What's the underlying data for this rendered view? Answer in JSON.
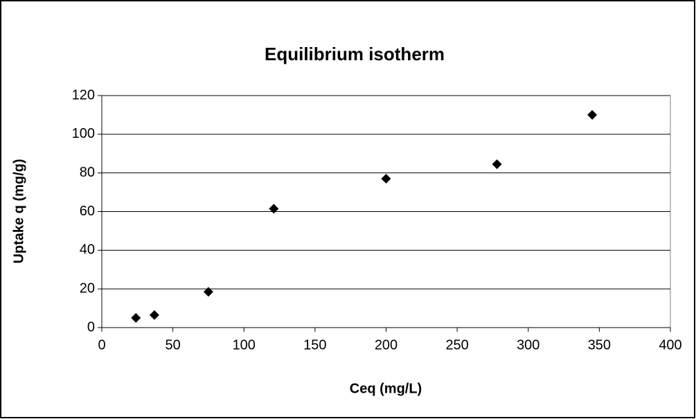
{
  "chart_data": {
    "type": "scatter",
    "title": "Equilibrium isotherm",
    "x_label": "Ceq (mg/L)",
    "y_label": "Uptake q (mg/g)",
    "series": [
      {
        "color": "#000000",
        "x": [
          24,
          37,
          75,
          121,
          200,
          278,
          345
        ],
        "values": [
          5,
          6.5,
          18.5,
          61.5,
          77,
          84.5,
          110
        ]
      }
    ],
    "xlim": [
      0,
      400
    ],
    "xticks": [
      0,
      50,
      100,
      150,
      200,
      250,
      300,
      350,
      400
    ],
    "ylim": [
      0,
      120
    ],
    "yticks": [
      0,
      20,
      40,
      60,
      80,
      100,
      120
    ],
    "grid": true
  }
}
